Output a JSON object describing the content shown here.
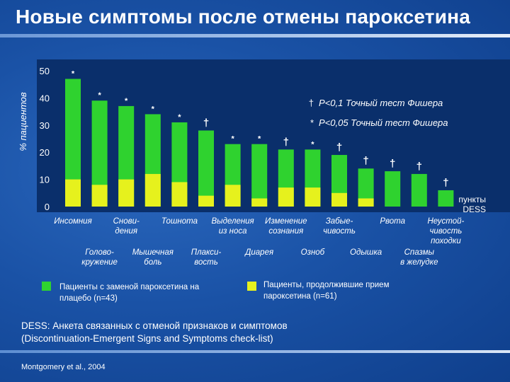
{
  "slide": {
    "title": "Новые симптомы после отмены пароксетина",
    "dess_line1": "DESS: Анкета связанных с отменой признаков и симптомов",
    "dess_line2": "(Discontinuation-Emergent Signs and Symptoms check-list)",
    "citation": "Montgomery et al., 2004"
  },
  "colors": {
    "placebo": "#2fd22f",
    "continued": "#e6f11d",
    "panel": "#0a2f6b"
  },
  "chart_data": {
    "type": "bar",
    "stacked_overlay": true,
    "ylabel": "% пациентов",
    "ylim": [
      0,
      50
    ],
    "yticks": [
      "0",
      "10",
      "20",
      "30",
      "40",
      "50"
    ],
    "x_end_label": [
      "пункты",
      "DESS"
    ],
    "categories": [
      {
        "label": [
          "Инсомния"
        ],
        "row": 1
      },
      {
        "label": [
          "Голово-",
          "кружение"
        ],
        "row": 2
      },
      {
        "label": [
          "Снови-",
          "дения"
        ],
        "row": 1
      },
      {
        "label": [
          "Мышечная",
          "боль"
        ],
        "row": 2
      },
      {
        "label": [
          "Тошнота"
        ],
        "row": 1
      },
      {
        "label": [
          "Плакси-",
          "вость"
        ],
        "row": 2
      },
      {
        "label": [
          "Выделения",
          "из носа"
        ],
        "row": 1
      },
      {
        "label": [
          "Диарея"
        ],
        "row": 2
      },
      {
        "label": [
          "Изменение",
          "сознания"
        ],
        "row": 1
      },
      {
        "label": [
          "Озноб"
        ],
        "row": 2
      },
      {
        "label": [
          "Забые-",
          "чивость"
        ],
        "row": 1
      },
      {
        "label": [
          "Одышка"
        ],
        "row": 2
      },
      {
        "label": [
          "Рвота"
        ],
        "row": 1
      },
      {
        "label": [
          "Спазмы",
          "в желудке"
        ],
        "row": 2
      },
      {
        "label": [
          "Неустой-",
          "чивость",
          "походки"
        ],
        "row": 1
      }
    ],
    "series": [
      {
        "name": "Пациенты с заменой пароксетина на плацебо (n=43)",
        "values": [
          47,
          39,
          37,
          34,
          31,
          28,
          23,
          23,
          21,
          21,
          19,
          14,
          13,
          12,
          6
        ]
      },
      {
        "name": "Пациенты, продолжившие прием пароксетина (n=61)",
        "values": [
          10,
          8,
          10,
          12,
          9,
          4,
          8,
          3,
          7,
          7,
          5,
          3,
          0,
          0,
          0
        ]
      }
    ],
    "markers": [
      "*",
      "*",
      "*",
      "*",
      "*",
      "†",
      "*",
      "*",
      "†",
      "*",
      "†",
      "†",
      "†",
      "†",
      "†"
    ],
    "annotations": [
      {
        "symbol": "†",
        "text": "P<0,1  Точный тест Фишера"
      },
      {
        "symbol": "*",
        "text": "P<0,05  Точный тест Фишера"
      }
    ]
  }
}
